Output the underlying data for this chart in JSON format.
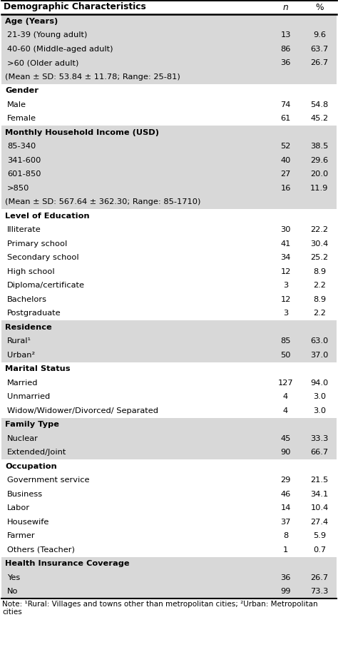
{
  "title_col": "Demographic Characteristics",
  "col_n": "n",
  "col_pct": "%",
  "rows": [
    {
      "label": "Age (Years)",
      "n": "",
      "pct": "",
      "bold": true,
      "shaded": true,
      "indent": false
    },
    {
      "label": "21-39 (Young adult)",
      "n": "13",
      "pct": "9.6",
      "bold": false,
      "shaded": true,
      "indent": true
    },
    {
      "label": "40-60 (Middle-aged adult)",
      "n": "86",
      "pct": "63.7",
      "bold": false,
      "shaded": true,
      "indent": true
    },
    {
      "label": ">60 (Older adult)",
      "n": "36",
      "pct": "26.7",
      "bold": false,
      "shaded": true,
      "indent": true
    },
    {
      "label": "(Mean ± SD: 53.84 ± 11.78; Range: 25-81)",
      "n": "",
      "pct": "",
      "bold": false,
      "shaded": true,
      "indent": false
    },
    {
      "label": "Gender",
      "n": "",
      "pct": "",
      "bold": true,
      "shaded": false,
      "indent": false
    },
    {
      "label": "Male",
      "n": "74",
      "pct": "54.8",
      "bold": false,
      "shaded": false,
      "indent": true
    },
    {
      "label": "Female",
      "n": "61",
      "pct": "45.2",
      "bold": false,
      "shaded": false,
      "indent": true
    },
    {
      "label": "Monthly Household Income (USD)",
      "n": "",
      "pct": "",
      "bold": true,
      "shaded": true,
      "indent": false
    },
    {
      "label": "85-340",
      "n": "52",
      "pct": "38.5",
      "bold": false,
      "shaded": true,
      "indent": true
    },
    {
      "label": "341-600",
      "n": "40",
      "pct": "29.6",
      "bold": false,
      "shaded": true,
      "indent": true
    },
    {
      "label": "601-850",
      "n": "27",
      "pct": "20.0",
      "bold": false,
      "shaded": true,
      "indent": true
    },
    {
      "label": ">850",
      "n": "16",
      "pct": "11.9",
      "bold": false,
      "shaded": true,
      "indent": true
    },
    {
      "label": "(Mean ± SD: 567.64 ± 362.30; Range: 85-1710)",
      "n": "",
      "pct": "",
      "bold": false,
      "shaded": true,
      "indent": false
    },
    {
      "label": "Level of Education",
      "n": "",
      "pct": "",
      "bold": true,
      "shaded": false,
      "indent": false
    },
    {
      "label": "Illiterate",
      "n": "30",
      "pct": "22.2",
      "bold": false,
      "shaded": false,
      "indent": true
    },
    {
      "label": "Primary school",
      "n": "41",
      "pct": "30.4",
      "bold": false,
      "shaded": false,
      "indent": true
    },
    {
      "label": "Secondary school",
      "n": "34",
      "pct": "25.2",
      "bold": false,
      "shaded": false,
      "indent": true
    },
    {
      "label": "High school",
      "n": "12",
      "pct": "8.9",
      "bold": false,
      "shaded": false,
      "indent": true
    },
    {
      "label": "Diploma/certificate",
      "n": "3",
      "pct": "2.2",
      "bold": false,
      "shaded": false,
      "indent": true
    },
    {
      "label": "Bachelors",
      "n": "12",
      "pct": "8.9",
      "bold": false,
      "shaded": false,
      "indent": true
    },
    {
      "label": "Postgraduate",
      "n": "3",
      "pct": "2.2",
      "bold": false,
      "shaded": false,
      "indent": true
    },
    {
      "label": "Residence",
      "n": "",
      "pct": "",
      "bold": true,
      "shaded": true,
      "indent": false
    },
    {
      "label": "Rural¹",
      "n": "85",
      "pct": "63.0",
      "bold": false,
      "shaded": true,
      "indent": true
    },
    {
      "label": "Urban²",
      "n": "50",
      "pct": "37.0",
      "bold": false,
      "shaded": true,
      "indent": true
    },
    {
      "label": "Marital Status",
      "n": "",
      "pct": "",
      "bold": true,
      "shaded": false,
      "indent": false
    },
    {
      "label": "Married",
      "n": "127",
      "pct": "94.0",
      "bold": false,
      "shaded": false,
      "indent": true
    },
    {
      "label": "Unmarried",
      "n": "4",
      "pct": "3.0",
      "bold": false,
      "shaded": false,
      "indent": true
    },
    {
      "label": "Widow/Widower/Divorced/ Separated",
      "n": "4",
      "pct": "3.0",
      "bold": false,
      "shaded": false,
      "indent": true
    },
    {
      "label": "Family Type",
      "n": "",
      "pct": "",
      "bold": true,
      "shaded": true,
      "indent": false
    },
    {
      "label": "Nuclear",
      "n": "45",
      "pct": "33.3",
      "bold": false,
      "shaded": true,
      "indent": true
    },
    {
      "label": "Extended/Joint",
      "n": "90",
      "pct": "66.7",
      "bold": false,
      "shaded": true,
      "indent": true
    },
    {
      "label": "Occupation",
      "n": "",
      "pct": "",
      "bold": true,
      "shaded": false,
      "indent": false
    },
    {
      "label": "Government service",
      "n": "29",
      "pct": "21.5",
      "bold": false,
      "shaded": false,
      "indent": true
    },
    {
      "label": "Business",
      "n": "46",
      "pct": "34.1",
      "bold": false,
      "shaded": false,
      "indent": true
    },
    {
      "label": "Labor",
      "n": "14",
      "pct": "10.4",
      "bold": false,
      "shaded": false,
      "indent": true
    },
    {
      "label": "Housewife",
      "n": "37",
      "pct": "27.4",
      "bold": false,
      "shaded": false,
      "indent": true
    },
    {
      "label": "Farmer",
      "n": "8",
      "pct": "5.9",
      "bold": false,
      "shaded": false,
      "indent": true
    },
    {
      "label": "Others (Teacher)",
      "n": "1",
      "pct": "0.7",
      "bold": false,
      "shaded": false,
      "indent": true
    },
    {
      "label": "Health Insurance Coverage",
      "n": "",
      "pct": "",
      "bold": true,
      "shaded": true,
      "indent": false
    },
    {
      "label": "Yes",
      "n": "36",
      "pct": "26.7",
      "bold": false,
      "shaded": true,
      "indent": true
    },
    {
      "label": "No",
      "n": "99",
      "pct": "73.3",
      "bold": false,
      "shaded": true,
      "indent": true
    }
  ],
  "note_line1": "Note: ¹Rural: Villages and towns other than metropolitan cities; ²Urban: Metropolitan",
  "note_line2": "cities",
  "shaded_color": "#d8d8d8",
  "white_color": "#ffffff",
  "border_color": "#000000",
  "font_size": 8.2,
  "header_font_size": 8.8,
  "note_font_size": 7.5,
  "fig_width": 4.74,
  "fig_height": 9.14
}
